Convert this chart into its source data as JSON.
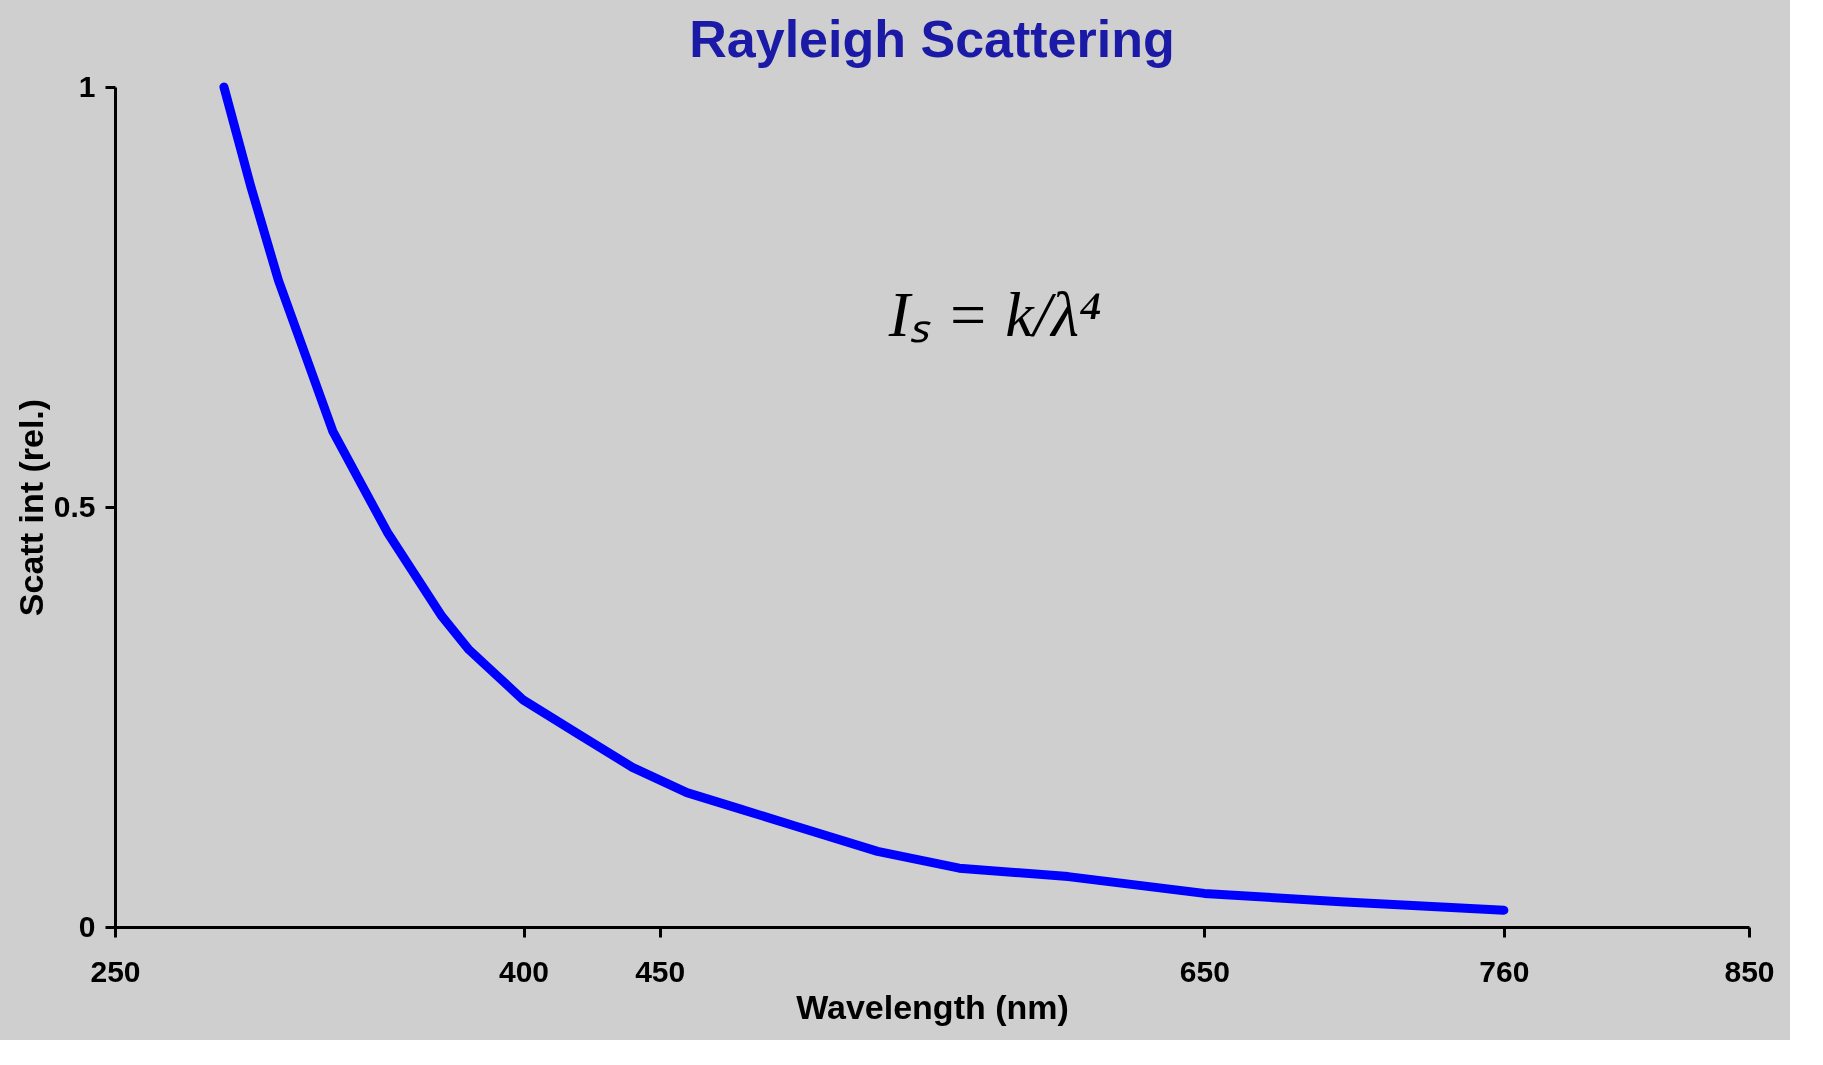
{
  "chart_data": {
    "type": "line",
    "title": "Rayleigh Scattering",
    "xlabel": "Wavelength (nm)",
    "ylabel": "Scatt int (rel.)",
    "x": [
      290,
      300,
      310,
      320,
      330,
      340,
      350,
      360,
      370,
      380,
      390,
      400,
      420,
      440,
      460,
      480,
      500,
      530,
      560,
      600,
      650,
      700,
      760
    ],
    "series": [
      {
        "color": "#0000ff",
        "values": [
          1.0,
          0.88,
          0.77,
          0.68,
          0.59,
          0.53,
          0.47,
          0.42,
          0.37,
          0.33,
          0.3,
          0.27,
          0.23,
          0.19,
          0.16,
          0.14,
          0.12,
          0.09,
          0.07,
          0.06,
          0.04,
          0.03,
          0.02
        ]
      }
    ],
    "xlim": [
      250,
      850
    ],
    "xticks": [
      250,
      400,
      450,
      650,
      760,
      850
    ],
    "ylim": [
      0,
      1
    ],
    "yticks": [
      0,
      0.5,
      1
    ],
    "annotations": [
      "Iₛ = k/λ⁴"
    ],
    "grid": false,
    "line_style": "solid"
  }
}
